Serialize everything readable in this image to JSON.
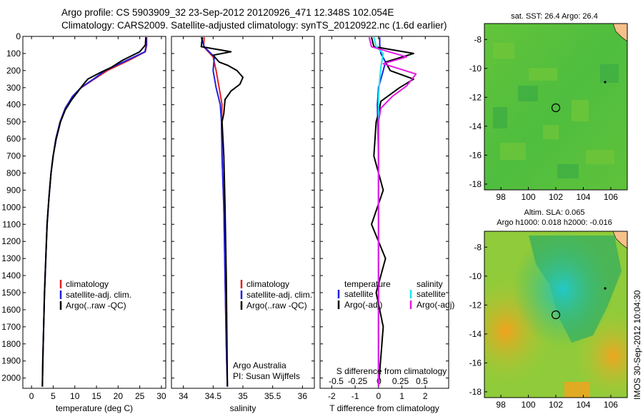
{
  "header": {
    "line1": "Argo profile: CS 5903909_32 23-Sep-2012 20120926_471 12.348S 102.054E",
    "line2": "Climatology: CARS2009. Satellite-adjusted climatology: synTS_20120922.nc (1.6d earlier)"
  },
  "side_stamp": "IMOS 30-Sep-2012 10:04:30",
  "credits": {
    "line1": "Argo Australia",
    "line2": "PI: Susan Wijffels"
  },
  "colors": {
    "climatology": "#e32020",
    "satellite_adj": "#2020e0",
    "argo": "#000000",
    "satellite_diff": "#19e6f0",
    "argo_adj_diff": "#e619e6"
  },
  "chart_data": [
    {
      "type": "line",
      "xlabel": "temperature (deg C)",
      "ylabel": "",
      "xlim": [
        -2,
        31
      ],
      "ylim": [
        2060,
        0
      ],
      "xticks": [
        "0",
        "5",
        "10",
        "15",
        "20",
        "25",
        "30"
      ],
      "xtick_values": [
        0,
        5,
        10,
        15,
        20,
        25,
        30
      ],
      "yticks": [
        "0",
        "100",
        "200",
        "300",
        "400",
        "500",
        "600",
        "700",
        "800",
        "900",
        "1000",
        "1100",
        "1200",
        "1300",
        "1400",
        "1500",
        "1600",
        "1700",
        "1800",
        "1900",
        "2000"
      ],
      "ytick_values": [
        0,
        100,
        200,
        300,
        400,
        500,
        600,
        700,
        800,
        900,
        1000,
        1100,
        1200,
        1300,
        1400,
        1500,
        1600,
        1700,
        1800,
        1900,
        2000
      ],
      "legend": [
        "climatology",
        "satellite-adj. clim.",
        "Argo(..raw -QC)"
      ],
      "series": [
        {
          "name": "climatology",
          "x": [
            26.6,
            26.6,
            26.3,
            22.5,
            17.5,
            14.5,
            11.5,
            9.5,
            7.8,
            6.6,
            5.6,
            5.0,
            4.5,
            4.0,
            3.6,
            3.3,
            3.0,
            2.8,
            2.6,
            2.5
          ],
          "y": [
            5,
            50,
            90,
            140,
            200,
            250,
            300,
            350,
            420,
            500,
            600,
            700,
            800,
            950,
            1100,
            1300,
            1500,
            1700,
            1900,
            2050
          ]
        },
        {
          "name": "satellite-adj. clim.",
          "x": [
            26.5,
            26.5,
            26.2,
            22.0,
            17.0,
            14.3,
            11.4,
            9.5,
            7.8,
            6.6,
            5.6,
            5.0,
            4.5,
            4.0,
            3.6,
            3.3,
            3.0,
            2.8,
            2.6,
            2.5
          ],
          "y": [
            5,
            50,
            90,
            140,
            200,
            250,
            300,
            350,
            420,
            500,
            600,
            700,
            800,
            950,
            1100,
            1300,
            1500,
            1700,
            1900,
            2050
          ]
        },
        {
          "name": "Argo(..raw -QC)",
          "x": [
            26.4,
            26.3,
            25.0,
            21.0,
            18.5,
            16.0,
            13.0,
            12.0,
            10.8,
            9.3,
            7.8,
            6.7,
            5.7,
            5.0,
            4.5,
            4.0,
            3.6,
            3.3,
            3.0,
            2.8,
            2.6,
            2.5
          ],
          "y": [
            5,
            50,
            90,
            140,
            180,
            210,
            250,
            280,
            320,
            370,
            430,
            500,
            600,
            700,
            800,
            950,
            1100,
            1300,
            1500,
            1700,
            1900,
            2050
          ]
        }
      ]
    },
    {
      "type": "line",
      "xlabel": "salinity",
      "ylabel": "",
      "xlim": [
        33.8,
        36.2
      ],
      "ylim": [
        2060,
        0
      ],
      "xticks": [
        "34",
        "34.5",
        "35",
        "35.5",
        "36"
      ],
      "xtick_values": [
        34,
        34.5,
        35,
        35.5,
        36
      ],
      "legend": [
        "climatology",
        "satellite-adj. clim.",
        "Argo(..raw -QC)"
      ],
      "series": [
        {
          "name": "climatology",
          "x": [
            34.35,
            34.34,
            34.5,
            34.55,
            34.6,
            34.65,
            34.64,
            34.65,
            34.68,
            34.7,
            34.72,
            34.74
          ],
          "y": [
            5,
            60,
            120,
            200,
            300,
            400,
            500,
            700,
            1000,
            1400,
            1800,
            2050
          ]
        },
        {
          "name": "satellite-adj. clim.",
          "x": [
            34.3,
            34.35,
            34.52,
            34.5,
            34.55,
            34.62,
            34.64,
            34.65,
            34.68,
            34.7,
            34.72,
            34.74
          ],
          "y": [
            5,
            60,
            120,
            200,
            300,
            400,
            500,
            700,
            1000,
            1400,
            1800,
            2050
          ]
        },
        {
          "name": "Argo(..raw -QC)",
          "x": [
            34.32,
            34.3,
            34.8,
            34.5,
            34.6,
            34.75,
            34.9,
            35.0,
            34.95,
            34.8,
            34.7,
            34.68,
            34.65,
            34.68,
            34.7,
            34.72,
            34.74
          ],
          "y": [
            5,
            60,
            90,
            110,
            150,
            170,
            200,
            240,
            280,
            320,
            370,
            450,
            500,
            700,
            1000,
            1400,
            2050
          ]
        }
      ]
    },
    {
      "type": "line",
      "xlabel": "T difference from climatology",
      "xlabel_top": "S difference from climatology",
      "xlim": [
        -2.5,
        3.0
      ],
      "ylim": [
        2060,
        0
      ],
      "xticks": [
        "-2",
        "-1",
        "0",
        "1",
        "2"
      ],
      "xtick_values": [
        -2,
        -1,
        0,
        1,
        2
      ],
      "xticks_top": [
        "-0.5",
        "-0.25",
        "0",
        "0.25",
        "0.5"
      ],
      "xtick_top_values": [
        -0.5,
        -0.25,
        0,
        0.25,
        0.5
      ],
      "legend": [
        "temperature",
        "satellite",
        "Argo(-adj)",
        "salinity",
        "satellite",
        "Argo(-adj)"
      ],
      "series": [
        {
          "name": "temperature satellite",
          "x": [
            0.05,
            0.05,
            0.1,
            0.3,
            0.2,
            0.1,
            0,
            -0.05,
            0,
            0,
            0
          ],
          "y": [
            5,
            50,
            100,
            150,
            200,
            250,
            300,
            400,
            700,
            1300,
            2050
          ]
        },
        {
          "name": "temperature Argo(-adj)",
          "x": [
            -0.3,
            -0.2,
            1.5,
            0.3,
            0.5,
            1.5,
            0.9,
            0.1,
            0,
            -0.1,
            -0.2,
            0.2,
            -0.3,
            0.3,
            -0.1,
            0.2,
            0
          ],
          "y": [
            5,
            60,
            100,
            150,
            200,
            250,
            300,
            380,
            450,
            500,
            700,
            900,
            1100,
            1300,
            1500,
            1700,
            2050
          ]
        },
        {
          "name": "salinity satellite",
          "x": [
            -0.2,
            -0.1,
            0.2,
            0.1,
            0.05,
            0,
            0,
            0,
            0
          ],
          "y": [
            5,
            60,
            100,
            180,
            250,
            350,
            500,
            1000,
            2050
          ]
        },
        {
          "name": "salinity Argo(-adj)",
          "x": [
            -0.4,
            -0.3,
            1.2,
            0.2,
            1.6,
            1.2,
            0.6,
            0.1,
            0,
            0,
            0
          ],
          "y": [
            5,
            60,
            120,
            160,
            220,
            290,
            350,
            420,
            500,
            1000,
            2050
          ]
        }
      ]
    },
    {
      "type": "heatmap",
      "title": "sat. SST: 26.4 Argo: 26.4",
      "xticks": [
        "98",
        "100",
        "102",
        "104",
        "106"
      ],
      "xtick_values": [
        98,
        100,
        102,
        104,
        106
      ],
      "yticks": [
        "-8",
        "-10",
        "-12",
        "-14",
        "-16",
        "-18"
      ],
      "ytick_values": [
        -8,
        -10,
        -12,
        -14,
        -16,
        -18
      ],
      "xlim": [
        96.8,
        107.2
      ],
      "ylim": [
        -18.4,
        -6.9
      ],
      "marker": {
        "lon": 102.054,
        "lat": -12.348
      },
      "island": {
        "lon": 105.6,
        "lat": -10.5
      }
    },
    {
      "type": "heatmap",
      "title": "Altim. SLA: 0.065",
      "subtitle": "Argo h1000: 0.018 h2000: -0.016",
      "xticks": [
        "98",
        "100",
        "102",
        "104",
        "106"
      ],
      "xtick_values": [
        98,
        100,
        102,
        104,
        106
      ],
      "yticks": [
        "-8",
        "-10",
        "-12",
        "-14",
        "-16",
        "-18"
      ],
      "ytick_values": [
        -8,
        -10,
        -12,
        -14,
        -16,
        -18
      ],
      "xlim": [
        96.8,
        107.2
      ],
      "ylim": [
        -18.4,
        -6.9
      ],
      "marker": {
        "lon": 102.054,
        "lat": -12.348
      },
      "island": {
        "lon": 105.6,
        "lat": -10.5
      }
    }
  ]
}
